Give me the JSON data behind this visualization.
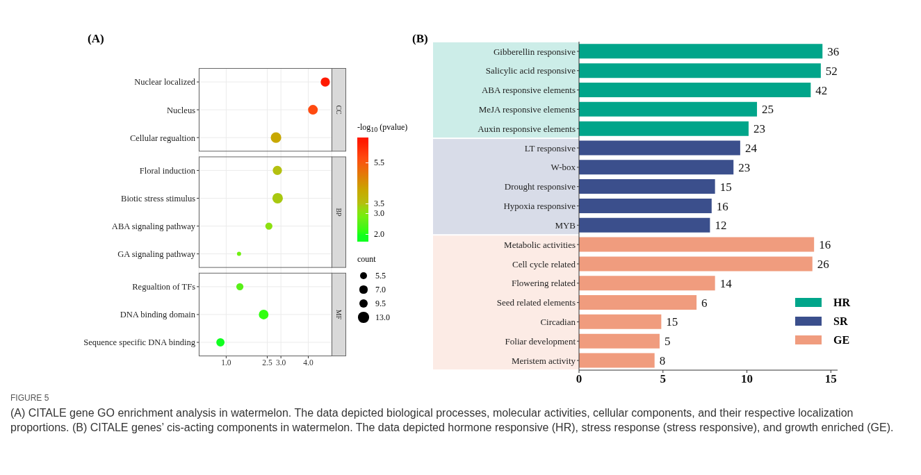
{
  "chart_data": [
    {
      "type": "bubble",
      "title": "(A)",
      "orientation": "horizontal",
      "categories": [
        "Nuclear localized",
        "Nucleus",
        "Cellular regualtion",
        "Floral induction",
        "Biotic stress stimulus",
        "ABA signaling pathway",
        "GA signaling pathway",
        "Regualtion of TFs",
        "DNA binding domain",
        "Sequence specific DNA binding"
      ],
      "values": [
        4.62,
        4.17,
        2.82,
        2.87,
        2.88,
        2.56,
        1.47,
        1.5,
        2.37,
        0.79
      ],
      "sizes": [
        10,
        11,
        13,
        10,
        13,
        6,
        2,
        6,
        11,
        8
      ],
      "cvalues": [
        6.5,
        5.7,
        4.1,
        3.45,
        3.4,
        3.1,
        2.8,
        2.5,
        2.1,
        1.9
      ],
      "colors": [
        "#ff1a00",
        "#ff4a10",
        "#c8a800",
        "#b4c010",
        "#a8c810",
        "#8ce010",
        "#70f010",
        "#58f018",
        "#30ff10",
        "#10ff20"
      ],
      "xlim": [
        0,
        4.85
      ],
      "xticks": [
        {
          "value": 1,
          "label": "1.0"
        },
        2.5,
        {
          "value": 3,
          "label": "3.0"
        },
        {
          "value": 4,
          "label": "4.0"
        }
      ],
      "grid": true,
      "annotations": [
        "CC",
        "BP",
        "MF"
      ],
      "clabel": "-log$_{10}$ (pvalue)",
      "clim": [
        1.6,
        6.7
      ],
      "cticks": [
        {
          "value": 2,
          "label": "2.0"
        },
        {
          "value": 3,
          "label": "3.0"
        },
        3.5,
        5.5
      ],
      "legend_title": "count",
      "size_legend": [
        5.5,
        {
          "value": 7,
          "label": "7.0"
        },
        9.5,
        {
          "value": 13,
          "label": "13.0"
        }
      ]
    },
    {
      "type": "bar",
      "title": "(B)",
      "orientation": "horizontal",
      "categories": [
        "Gibberellin responsive",
        "Salicylic acid responsive",
        "ABA responsive elements",
        "MeJA responsive elements",
        "Auxin responsive elements",
        "LT responsive",
        "W-box",
        "Drought responsive",
        "Hypoxia responsive",
        "MYB",
        "Metabolic activities",
        "Cell cycle related",
        "Flowering related",
        "Seed related elements",
        "Circadian",
        "Foliar development",
        "Meristem activity"
      ],
      "series": [
        {
          "name": "HR",
          "color": "#00a58a",
          "values": [
            14.5,
            14.4,
            13.8,
            10.6,
            10.1,
            null,
            null,
            null,
            null,
            null,
            null,
            null,
            null,
            null,
            null,
            null,
            null
          ]
        },
        {
          "name": "SR",
          "color": "#3b4f8c",
          "values": [
            null,
            null,
            null,
            null,
            null,
            9.6,
            9.2,
            8.1,
            7.9,
            7.8,
            null,
            null,
            null,
            null,
            null,
            null,
            null
          ]
        },
        {
          "name": "GE",
          "color": "#f09c7e",
          "values": [
            null,
            null,
            null,
            null,
            null,
            null,
            null,
            null,
            null,
            null,
            14.0,
            13.9,
            8.1,
            7.0,
            4.9,
            4.8,
            4.5
          ]
        }
      ],
      "xlim": [
        0,
        15.4
      ],
      "xticks": [
        0,
        5,
        10,
        15
      ],
      "legend": "bottom right",
      "annotations": [
        {
          "text": "36",
          "x": 14.5,
          "y": "Gibberellin responsive"
        },
        {
          "text": "52",
          "x": 14.4,
          "y": "Salicylic acid responsive"
        },
        {
          "text": "42",
          "x": 13.8,
          "y": "ABA responsive elements"
        },
        {
          "text": "25",
          "x": 10.6,
          "y": "MeJA responsive elements"
        },
        {
          "text": "23",
          "x": 10.1,
          "y": "Auxin responsive elements"
        },
        {
          "text": "24",
          "x": 9.6,
          "y": "LT responsive"
        },
        {
          "text": "23",
          "x": 9.2,
          "y": "W-box"
        },
        {
          "text": "15",
          "x": 8.1,
          "y": "Drought responsive"
        },
        {
          "text": "16",
          "x": 7.9,
          "y": "Hypoxia responsive"
        },
        {
          "text": "12",
          "x": 7.8,
          "y": "MYB"
        },
        {
          "text": "16",
          "x": 14.0,
          "y": "Metabolic activities"
        },
        {
          "text": "26",
          "x": 13.9,
          "y": "Cell cycle related"
        },
        {
          "text": "14",
          "x": 8.1,
          "y": "Flowering related"
        },
        {
          "text": "6",
          "x": 7.0,
          "y": "Seed related elements"
        },
        {
          "text": "15",
          "x": 4.9,
          "y": "Circadian"
        },
        {
          "text": "5",
          "x": 4.8,
          "y": "Foliar development"
        },
        {
          "text": "8",
          "x": 4.5,
          "y": "Meristem activity"
        },
        "FIGURE 5",
        "(A) CITALE gene GO enrichment analysis in watermelon. The data depicted biological processes, molecular activities, cellular components, and their respective localization proportions. (B) CITALE genes’ cis-acting components in watermelon. The data depicted hormone responsive (HR), stress response (stress responsive), and growth enriched (GE)."
      ]
    }
  ]
}
